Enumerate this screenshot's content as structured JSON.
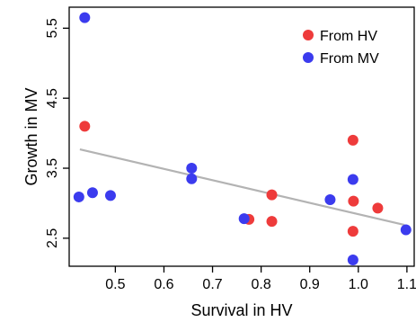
{
  "chart_data": {
    "type": "scatter",
    "title": "",
    "xlabel": "Survival in HV",
    "ylabel": "Growth in MV",
    "xlim": [
      0.405,
      1.115
    ],
    "ylim": [
      2.1,
      5.8
    ],
    "xticks": [
      0.5,
      0.6,
      0.7,
      0.8,
      0.9,
      1.0,
      1.1
    ],
    "xtick_labels": [
      "0.5",
      "0.6",
      "0.7",
      "0.8",
      "0.9",
      "1.0",
      "1.1"
    ],
    "yticks": [
      2.5,
      3.5,
      4.5,
      5.5
    ],
    "ytick_labels": [
      "2.5",
      "3.5",
      "4.5",
      "5.5"
    ],
    "grid": false,
    "legend_position": "top-right",
    "series": [
      {
        "name": "From HV",
        "color": "#ee3b3b",
        "points": [
          {
            "x": 0.437,
            "y": 4.1
          },
          {
            "x": 0.775,
            "y": 2.77
          },
          {
            "x": 0.822,
            "y": 3.12
          },
          {
            "x": 0.822,
            "y": 2.74
          },
          {
            "x": 0.989,
            "y": 3.9
          },
          {
            "x": 0.99,
            "y": 3.03
          },
          {
            "x": 0.989,
            "y": 2.6
          },
          {
            "x": 1.04,
            "y": 2.93
          }
        ]
      },
      {
        "name": "From MV",
        "color": "#3b3bee",
        "points": [
          {
            "x": 0.437,
            "y": 5.65
          },
          {
            "x": 0.425,
            "y": 3.09
          },
          {
            "x": 0.453,
            "y": 3.15
          },
          {
            "x": 0.49,
            "y": 3.11
          },
          {
            "x": 0.657,
            "y": 3.5
          },
          {
            "x": 0.657,
            "y": 3.35
          },
          {
            "x": 0.765,
            "y": 2.78
          },
          {
            "x": 0.942,
            "y": 3.05
          },
          {
            "x": 0.989,
            "y": 3.34
          },
          {
            "x": 0.989,
            "y": 2.19
          },
          {
            "x": 1.098,
            "y": 2.62
          }
        ]
      }
    ],
    "trendline": {
      "color": "#b3b3b3",
      "x1": 0.427,
      "y1": 3.77,
      "x2": 1.095,
      "y2": 2.69
    }
  }
}
